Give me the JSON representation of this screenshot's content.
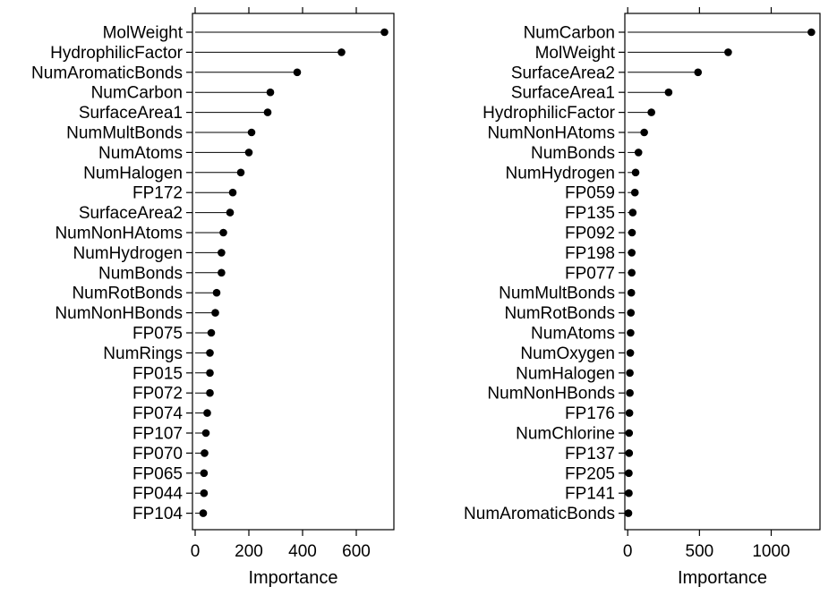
{
  "chart_data": [
    {
      "type": "lollipop",
      "orientation": "horizontal",
      "xlabel": "Importance",
      "xlim": [
        -10,
        740
      ],
      "xticks": [
        0,
        200,
        400,
        600
      ],
      "grid": false,
      "features": [
        {
          "name": "MolWeight",
          "value": 705
        },
        {
          "name": "HydrophilicFactor",
          "value": 545
        },
        {
          "name": "NumAromaticBonds",
          "value": 380
        },
        {
          "name": "NumCarbon",
          "value": 280
        },
        {
          "name": "SurfaceArea1",
          "value": 270
        },
        {
          "name": "NumMultBonds",
          "value": 210
        },
        {
          "name": "NumAtoms",
          "value": 200
        },
        {
          "name": "NumHalogen",
          "value": 170
        },
        {
          "name": "FP172",
          "value": 140
        },
        {
          "name": "SurfaceArea2",
          "value": 130
        },
        {
          "name": "NumNonHAtoms",
          "value": 105
        },
        {
          "name": "NumHydrogen",
          "value": 98
        },
        {
          "name": "NumBonds",
          "value": 98
        },
        {
          "name": "NumRotBonds",
          "value": 80
        },
        {
          "name": "NumNonHBonds",
          "value": 75
        },
        {
          "name": "FP075",
          "value": 60
        },
        {
          "name": "NumRings",
          "value": 55
        },
        {
          "name": "FP015",
          "value": 55
        },
        {
          "name": "FP072",
          "value": 55
        },
        {
          "name": "FP074",
          "value": 45
        },
        {
          "name": "FP107",
          "value": 40
        },
        {
          "name": "FP070",
          "value": 35
        },
        {
          "name": "FP065",
          "value": 33
        },
        {
          "name": "FP044",
          "value": 33
        },
        {
          "name": "FP104",
          "value": 30
        }
      ]
    },
    {
      "type": "lollipop",
      "orientation": "horizontal",
      "xlabel": "Importance",
      "xlim": [
        -20,
        1340
      ],
      "xticks": [
        0,
        500,
        1000
      ],
      "grid": false,
      "features": [
        {
          "name": "NumCarbon",
          "value": 1280
        },
        {
          "name": "MolWeight",
          "value": 700
        },
        {
          "name": "SurfaceArea2",
          "value": 490
        },
        {
          "name": "SurfaceArea1",
          "value": 285
        },
        {
          "name": "HydrophilicFactor",
          "value": 165
        },
        {
          "name": "NumNonHAtoms",
          "value": 115
        },
        {
          "name": "NumBonds",
          "value": 75
        },
        {
          "name": "NumHydrogen",
          "value": 55
        },
        {
          "name": "FP059",
          "value": 50
        },
        {
          "name": "FP135",
          "value": 35
        },
        {
          "name": "FP092",
          "value": 30
        },
        {
          "name": "FP198",
          "value": 28
        },
        {
          "name": "FP077",
          "value": 28
        },
        {
          "name": "NumMultBonds",
          "value": 25
        },
        {
          "name": "NumRotBonds",
          "value": 22
        },
        {
          "name": "NumAtoms",
          "value": 20
        },
        {
          "name": "NumOxygen",
          "value": 18
        },
        {
          "name": "NumHalogen",
          "value": 15
        },
        {
          "name": "NumNonHBonds",
          "value": 15
        },
        {
          "name": "FP176",
          "value": 12
        },
        {
          "name": "NumChlorine",
          "value": 10
        },
        {
          "name": "FP137",
          "value": 10
        },
        {
          "name": "FP205",
          "value": 8
        },
        {
          "name": "FP141",
          "value": 8
        },
        {
          "name": "NumAromaticBonds",
          "value": 5
        }
      ]
    }
  ]
}
